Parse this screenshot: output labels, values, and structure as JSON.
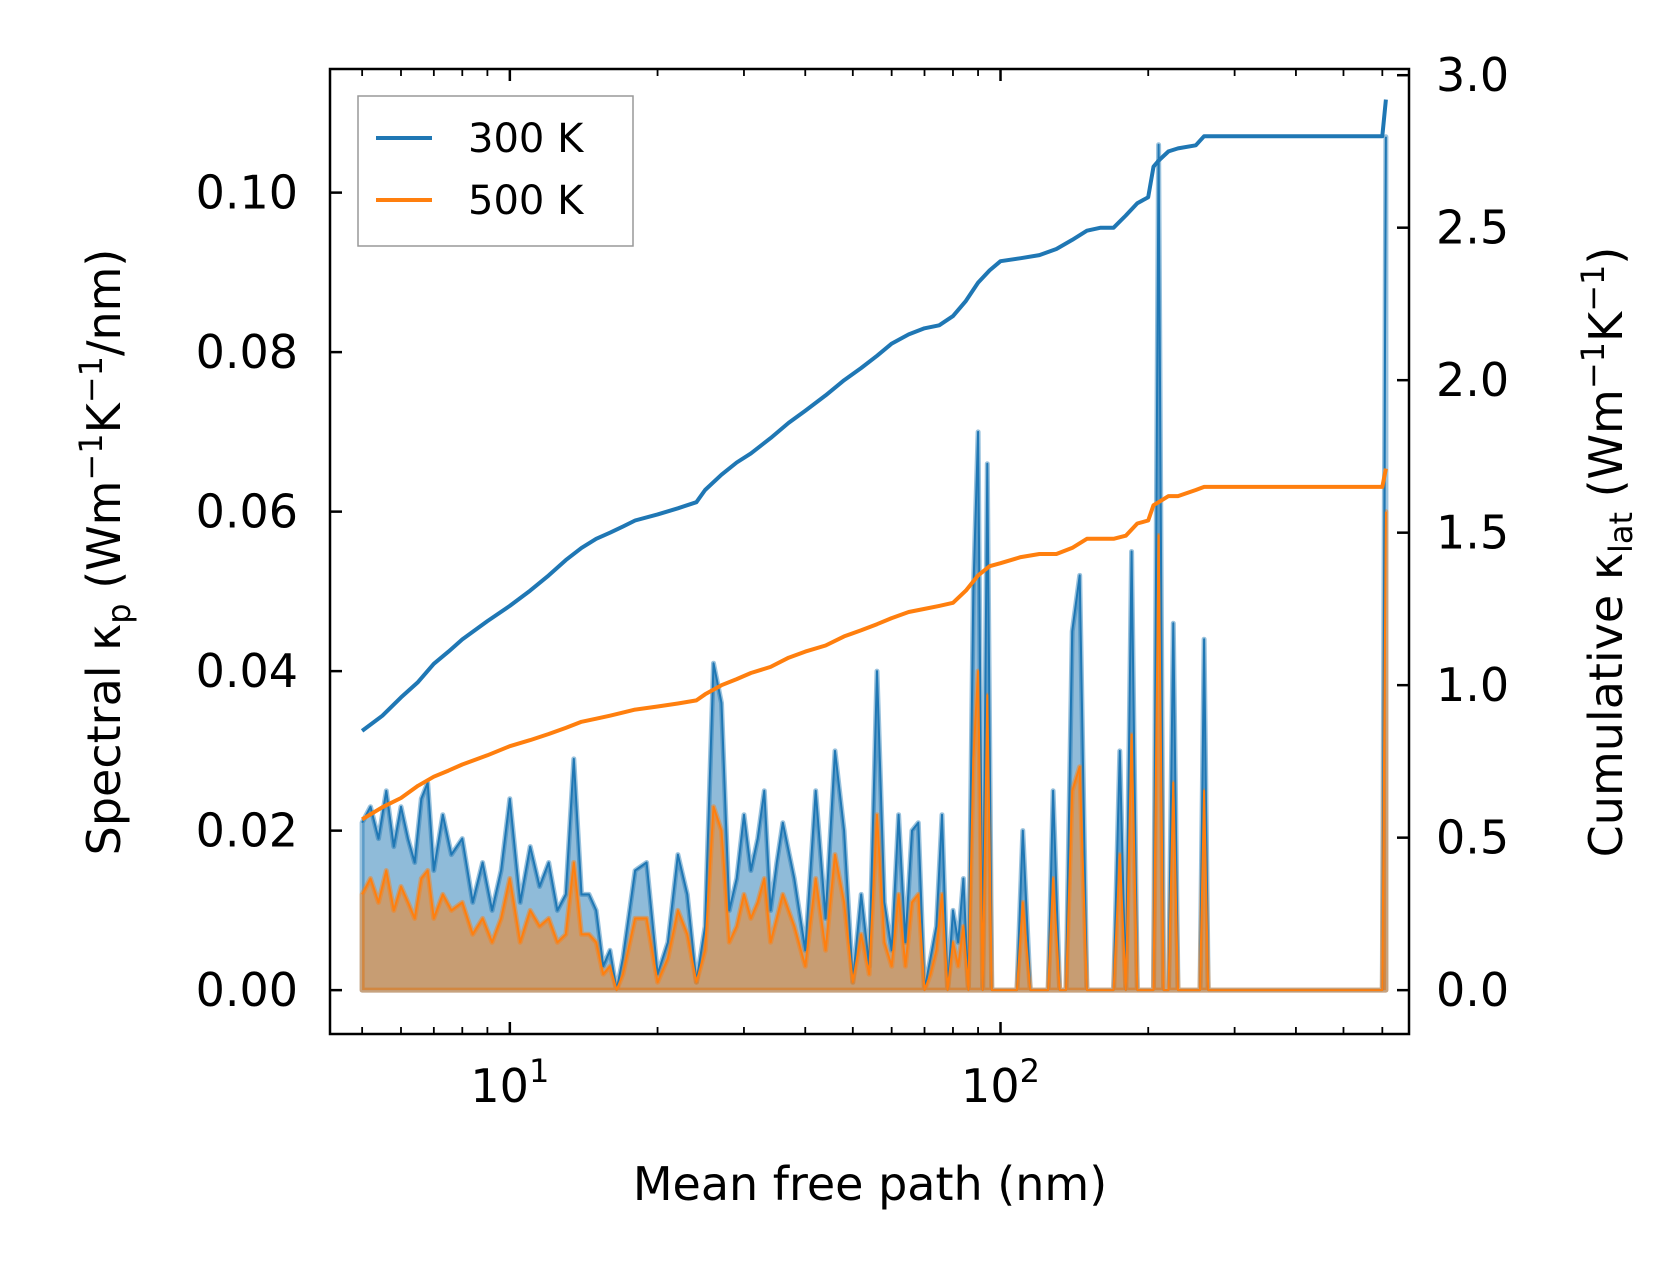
{
  "chart_data": {
    "type": "line",
    "title": "",
    "xlabel": "Mean free path (nm)",
    "ylabel_left": {
      "main": "Spectral κ",
      "sub": "p",
      "open": " (Wm",
      "exp1": "−1",
      "mid": "K",
      "exp2": "−1",
      "tail": "/nm)"
    },
    "ylabel_right": {
      "main": "Cumulative κ",
      "sub": "lat",
      "open": " (Wm",
      "exp1": "−1",
      "mid": "K",
      "exp2": "−1",
      "tail": ")"
    },
    "xscale": "log",
    "xlim": [
      4.3,
      680
    ],
    "ylim_left": [
      -0.0055,
      0.1155
    ],
    "ylim_right": [
      -0.1438,
      3.0203
    ],
    "x_ticks": [
      {
        "value": 10,
        "base": "10",
        "exp": "1"
      },
      {
        "value": 100,
        "base": "10",
        "exp": "2"
      }
    ],
    "y_ticks_left": [
      "0.00",
      "0.02",
      "0.04",
      "0.06",
      "0.08",
      "0.10"
    ],
    "y_ticks_right": [
      "0.0",
      "0.5",
      "1.0",
      "1.5",
      "2.0",
      "2.5",
      "3.0"
    ],
    "legend_position": "top-left",
    "series": [
      {
        "name": "300 K",
        "color": "#1f77b4",
        "cumulative": {
          "x": [
            5,
            5.5,
            6,
            6.5,
            7,
            7.5,
            8,
            9,
            10,
            11,
            12,
            13,
            14,
            15,
            16,
            17,
            18,
            20,
            22,
            24,
            25,
            27,
            29,
            31,
            34,
            37,
            40,
            44,
            48,
            52,
            56,
            60,
            65,
            70,
            75,
            80,
            85,
            90,
            95,
            100,
            110,
            120,
            130,
            140,
            150,
            160,
            170,
            180,
            190,
            200,
            205,
            210,
            220,
            230,
            250,
            260,
            300,
            400,
            500,
            600,
            610
          ],
          "y": [
            0.85,
            0.9,
            0.96,
            1.01,
            1.07,
            1.11,
            1.15,
            1.21,
            1.26,
            1.31,
            1.36,
            1.41,
            1.45,
            1.48,
            1.5,
            1.52,
            1.54,
            1.56,
            1.58,
            1.6,
            1.64,
            1.69,
            1.73,
            1.76,
            1.81,
            1.86,
            1.9,
            1.95,
            2.0,
            2.04,
            2.08,
            2.12,
            2.15,
            2.17,
            2.18,
            2.21,
            2.26,
            2.32,
            2.36,
            2.39,
            2.4,
            2.41,
            2.43,
            2.46,
            2.49,
            2.5,
            2.5,
            2.54,
            2.58,
            2.6,
            2.7,
            2.72,
            2.75,
            2.76,
            2.77,
            2.8,
            2.8,
            2.8,
            2.8,
            2.8,
            2.92
          ]
        },
        "spectral": {
          "x": [
            5,
            5.2,
            5.4,
            5.6,
            5.8,
            6,
            6.2,
            6.4,
            6.6,
            6.8,
            7,
            7.3,
            7.6,
            8,
            8.4,
            8.8,
            9.2,
            9.6,
            10,
            10.5,
            11,
            11.5,
            12,
            12.5,
            13,
            13.5,
            14,
            14.5,
            15,
            15.5,
            16,
            16.5,
            17,
            18,
            19,
            20,
            21,
            22,
            23,
            24,
            25,
            26,
            27,
            28,
            29,
            30,
            31,
            32,
            33,
            34,
            35,
            36,
            38,
            40,
            42,
            44,
            46,
            48,
            50,
            52,
            54,
            56,
            58,
            60,
            62,
            64,
            66,
            68,
            70,
            72,
            74,
            76,
            78,
            80,
            82,
            84,
            86,
            88,
            90,
            92,
            94,
            96,
            98,
            100,
            102,
            105,
            108,
            111,
            115,
            120,
            125,
            128,
            132,
            136,
            140,
            145,
            150,
            155,
            160,
            165,
            170,
            175,
            180,
            185,
            190,
            195,
            200,
            205,
            210,
            215,
            220,
            225,
            230,
            235,
            240,
            245,
            250,
            255,
            260,
            265,
            270,
            280,
            300,
            400,
            500,
            590,
            600,
            610
          ],
          "y": [
            0.021,
            0.023,
            0.019,
            0.025,
            0.018,
            0.023,
            0.019,
            0.016,
            0.024,
            0.026,
            0.015,
            0.022,
            0.017,
            0.019,
            0.011,
            0.016,
            0.01,
            0.015,
            0.024,
            0.011,
            0.018,
            0.013,
            0.016,
            0.01,
            0.012,
            0.029,
            0.012,
            0.012,
            0.01,
            0.003,
            0.005,
            0.0,
            0.004,
            0.015,
            0.016,
            0.002,
            0.006,
            0.017,
            0.012,
            0.001,
            0.008,
            0.041,
            0.036,
            0.01,
            0.014,
            0.022,
            0.015,
            0.019,
            0.025,
            0.01,
            0.016,
            0.021,
            0.014,
            0.005,
            0.025,
            0.009,
            0.03,
            0.02,
            0.001,
            0.012,
            0.003,
            0.04,
            0.011,
            0.005,
            0.022,
            0.006,
            0.02,
            0.021,
            0.0,
            0.004,
            0.008,
            0.022,
            0.0,
            0.01,
            0.006,
            0.014,
            0.0,
            0.05,
            0.07,
            0.0,
            0.066,
            0.0,
            0.0,
            0.0,
            0.0,
            0.0,
            0.0,
            0.02,
            0.0,
            0.0,
            0.0,
            0.025,
            0.0,
            0.0,
            0.045,
            0.052,
            0.0,
            0.0,
            0.0,
            0.0,
            0.0,
            0.03,
            0.0,
            0.055,
            0.0,
            0.0,
            0.0,
            0.0,
            0.106,
            0.0,
            0.0,
            0.046,
            0.0,
            0.0,
            0.0,
            0.0,
            0.0,
            0.0,
            0.044,
            0.0,
            0.0,
            0.0,
            0.0,
            0.0,
            0.0,
            0.0,
            0.0,
            0.107
          ]
        }
      },
      {
        "name": "500 K",
        "color": "#ff7f0e",
        "cumulative": {
          "x": [
            5,
            5.5,
            6,
            6.5,
            7,
            7.5,
            8,
            9,
            10,
            11,
            12,
            13,
            14,
            15,
            16,
            17,
            18,
            20,
            22,
            24,
            25,
            27,
            29,
            31,
            34,
            37,
            40,
            44,
            48,
            52,
            56,
            60,
            65,
            70,
            75,
            80,
            85,
            90,
            95,
            100,
            110,
            120,
            130,
            140,
            150,
            160,
            170,
            180,
            190,
            200,
            205,
            210,
            220,
            230,
            250,
            260,
            300,
            400,
            500,
            600,
            610
          ],
          "y": [
            0.56,
            0.6,
            0.63,
            0.67,
            0.7,
            0.72,
            0.74,
            0.77,
            0.8,
            0.82,
            0.84,
            0.86,
            0.88,
            0.89,
            0.9,
            0.91,
            0.92,
            0.93,
            0.94,
            0.95,
            0.97,
            1.0,
            1.02,
            1.04,
            1.06,
            1.09,
            1.11,
            1.13,
            1.16,
            1.18,
            1.2,
            1.22,
            1.24,
            1.25,
            1.26,
            1.27,
            1.31,
            1.36,
            1.39,
            1.4,
            1.42,
            1.43,
            1.43,
            1.45,
            1.48,
            1.48,
            1.48,
            1.49,
            1.53,
            1.54,
            1.59,
            1.6,
            1.62,
            1.62,
            1.64,
            1.65,
            1.65,
            1.65,
            1.65,
            1.65,
            1.71
          ]
        },
        "spectral": {
          "x": [
            5,
            5.2,
            5.4,
            5.6,
            5.8,
            6,
            6.2,
            6.4,
            6.6,
            6.8,
            7,
            7.3,
            7.6,
            8,
            8.4,
            8.8,
            9.2,
            9.6,
            10,
            10.5,
            11,
            11.5,
            12,
            12.5,
            13,
            13.5,
            14,
            14.5,
            15,
            15.5,
            16,
            16.5,
            17,
            18,
            19,
            20,
            21,
            22,
            23,
            24,
            25,
            26,
            27,
            28,
            29,
            30,
            31,
            32,
            33,
            34,
            35,
            36,
            38,
            40,
            42,
            44,
            46,
            48,
            50,
            52,
            54,
            56,
            58,
            60,
            62,
            64,
            66,
            68,
            70,
            72,
            74,
            76,
            78,
            80,
            82,
            84,
            86,
            88,
            90,
            92,
            94,
            96,
            98,
            100,
            102,
            105,
            108,
            111,
            115,
            120,
            125,
            128,
            132,
            136,
            140,
            145,
            150,
            155,
            160,
            165,
            170,
            175,
            180,
            185,
            190,
            195,
            200,
            205,
            210,
            215,
            220,
            225,
            230,
            235,
            240,
            245,
            250,
            255,
            260,
            265,
            270,
            280,
            300,
            400,
            500,
            590,
            600,
            610
          ],
          "y": [
            0.012,
            0.014,
            0.011,
            0.015,
            0.01,
            0.013,
            0.011,
            0.009,
            0.014,
            0.015,
            0.009,
            0.012,
            0.01,
            0.011,
            0.007,
            0.009,
            0.006,
            0.009,
            0.014,
            0.006,
            0.01,
            0.008,
            0.009,
            0.006,
            0.007,
            0.016,
            0.007,
            0.007,
            0.006,
            0.002,
            0.003,
            0.0,
            0.002,
            0.009,
            0.009,
            0.001,
            0.004,
            0.01,
            0.007,
            0.001,
            0.005,
            0.023,
            0.02,
            0.006,
            0.008,
            0.012,
            0.009,
            0.011,
            0.014,
            0.006,
            0.009,
            0.012,
            0.008,
            0.003,
            0.014,
            0.005,
            0.017,
            0.011,
            0.001,
            0.007,
            0.002,
            0.022,
            0.006,
            0.003,
            0.012,
            0.003,
            0.011,
            0.012,
            0.0,
            0.002,
            0.005,
            0.012,
            0.0,
            0.006,
            0.003,
            0.008,
            0.0,
            0.029,
            0.04,
            0.0,
            0.037,
            0.0,
            0.0,
            0.0,
            0.0,
            0.0,
            0.0,
            0.011,
            0.0,
            0.0,
            0.0,
            0.014,
            0.0,
            0.0,
            0.025,
            0.028,
            0.0,
            0.0,
            0.0,
            0.0,
            0.0,
            0.017,
            0.0,
            0.032,
            0.0,
            0.0,
            0.0,
            0.0,
            0.057,
            0.0,
            0.0,
            0.026,
            0.0,
            0.0,
            0.0,
            0.0,
            0.0,
            0.0,
            0.025,
            0.0,
            0.0,
            0.0,
            0.0,
            0.0,
            0.0,
            0.0,
            0.0,
            0.06
          ]
        }
      }
    ]
  }
}
